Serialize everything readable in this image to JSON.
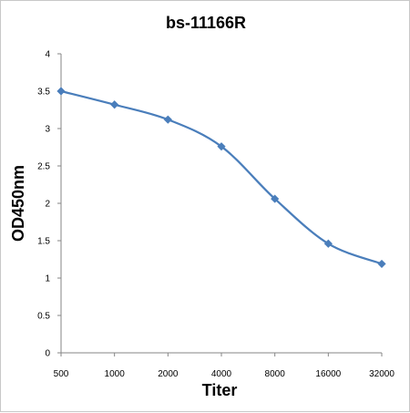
{
  "chart_data": {
    "type": "line",
    "title": "bs-11166R",
    "xlabel": "Titer",
    "ylabel": "OD450nm",
    "categories": [
      "500",
      "1000",
      "2000",
      "4000",
      "8000",
      "16000",
      "32000"
    ],
    "series": [
      {
        "values": [
          3.5,
          3.32,
          3.12,
          2.76,
          2.06,
          1.46,
          1.19
        ],
        "color": "#4a7ebb"
      }
    ],
    "ylim": [
      0,
      4
    ],
    "yticks": [
      "0",
      "0.5",
      "1",
      "1.5",
      "2",
      "2.5",
      "3",
      "3.5",
      "4"
    ],
    "grid": false,
    "legend": "none",
    "smooth": true
  }
}
